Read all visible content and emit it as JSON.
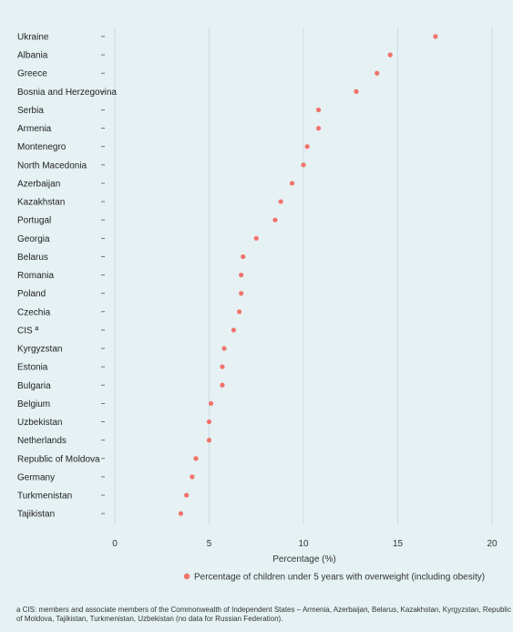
{
  "chart_data": {
    "type": "scatter",
    "categories": [
      "Ukraine",
      "Albania",
      "Greece",
      "Bosnia and Herzegovina",
      "Serbia",
      "Armenia",
      "Montenegro",
      "North Macedonia",
      "Azerbaijan",
      "Kazakhstan",
      "Portugal",
      "Georgia",
      "Belarus",
      "Romania",
      "Poland",
      "Czechia",
      "CIS ª",
      "Kyrgyzstan",
      "Estonia",
      "Bulgaria",
      "Belgium",
      "Uzbekistan",
      "Netherlands",
      "Republic of Moldova",
      "Germany",
      "Turkmenistan",
      "Tajikistan"
    ],
    "series": [
      {
        "name": "Percentage of children under 5 years with overweight (including obesity)",
        "color": "#f0736a",
        "values": [
          17.0,
          14.6,
          13.9,
          12.8,
          10.8,
          10.8,
          10.2,
          10.0,
          9.4,
          8.8,
          8.5,
          7.5,
          6.8,
          6.7,
          6.7,
          6.6,
          6.3,
          5.8,
          5.7,
          5.7,
          5.1,
          5.0,
          5.0,
          4.3,
          4.1,
          3.8,
          3.5
        ]
      }
    ],
    "xlabel": "Percentage (%)",
    "xlim": [
      0,
      20
    ],
    "xticks": [
      "0",
      "5",
      "10",
      "15",
      "20"
    ],
    "grid": true,
    "legend_position": "bottom",
    "colors": {
      "grid": "#c9dde3",
      "background": "#e6f1f4"
    }
  },
  "footnote": "a CIS: members and associate members of the Commonwealth of Independent States – Armenia, Azerbaijan, Belarus, Kazakhstan, Kyrgyzstan, Republic of Moldova, Tajikistan, Turkmenistan, Uzbekistan (no data for Russian Federation)."
}
